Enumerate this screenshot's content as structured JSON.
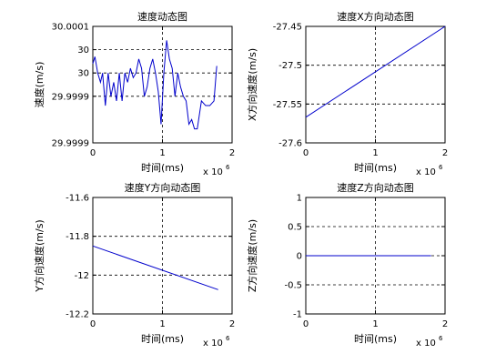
{
  "chart_data": [
    {
      "id": "speed",
      "type": "line",
      "title": "速度动态图",
      "xlabel": "时间(ms)",
      "ylabel": "速度(m/s)",
      "x_multiplier_label": "x 10",
      "x_multiplier_exp": "6",
      "xlim": [
        0,
        2
      ],
      "ylim": [
        29.99985,
        30.0001
      ],
      "xticks": [
        0,
        1,
        2
      ],
      "xtick_labels": [
        "0",
        "1",
        "2"
      ],
      "yticks": [
        30.0001,
        30.00005,
        30.0,
        29.99995,
        29.99985
      ],
      "ytick_labels": [
        "30.0001",
        "30",
        "30",
        "29.9999",
        "29.9999"
      ],
      "grid": true,
      "series": [
        {
          "color": "#0000cc",
          "x": [
            0.0,
            0.03,
            0.07,
            0.11,
            0.14,
            0.18,
            0.22,
            0.26,
            0.3,
            0.34,
            0.38,
            0.42,
            0.46,
            0.5,
            0.54,
            0.58,
            0.62,
            0.66,
            0.7,
            0.74,
            0.78,
            0.82,
            0.86,
            0.9,
            0.94,
            0.98,
            1.02,
            1.06,
            1.1,
            1.14,
            1.18,
            1.22,
            1.26,
            1.3,
            1.34,
            1.38,
            1.42,
            1.46,
            1.5,
            1.56,
            1.62,
            1.68,
            1.74,
            1.78
          ],
          "y": [
            30.00002,
            30.000035,
            30.0,
            29.99998,
            30.0,
            29.99993,
            30.0,
            29.99995,
            29.99998,
            29.99994,
            30.0,
            29.99994,
            30.0,
            29.99998,
            30.00001,
            29.99999,
            30.0,
            30.00003,
            30.00001,
            29.99995,
            29.99997,
            30.00001,
            30.00003,
            30.0,
            29.99996,
            29.99989,
            30.0,
            30.00007,
            30.00003,
            30.00001,
            29.99995,
            30.0,
            29.99997,
            29.99995,
            29.99994,
            29.99989,
            29.9999,
            29.99988,
            29.99988,
            29.99994,
            29.99993,
            29.99993,
            29.99994,
            30.000015
          ]
        }
      ]
    },
    {
      "id": "vx",
      "type": "line",
      "title": "速度X方向动态图",
      "xlabel": "时间(ms)",
      "ylabel": "X方向速度(m/s)",
      "x_multiplier_label": "x 10",
      "x_multiplier_exp": "6",
      "xlim": [
        0,
        2
      ],
      "ylim": [
        -27.6,
        -27.45
      ],
      "xticks": [
        0,
        1,
        2
      ],
      "xtick_labels": [
        "0",
        "1",
        "2"
      ],
      "yticks": [
        -27.45,
        -27.5,
        -27.55,
        -27.6
      ],
      "ytick_labels": [
        "-27.45",
        "-27.5",
        "-27.55",
        "-27.6"
      ],
      "grid": true,
      "series": [
        {
          "color": "#0000cc",
          "x": [
            0.0,
            2.0
          ],
          "y": [
            -27.567,
            -27.45
          ]
        }
      ]
    },
    {
      "id": "vy",
      "type": "line",
      "title": "速度Y方向动态图",
      "xlabel": "时间(ms)",
      "ylabel": "Y方向速度(m/s)",
      "x_multiplier_label": "x 10",
      "x_multiplier_exp": "6",
      "xlim": [
        0,
        2
      ],
      "ylim": [
        -12.2,
        -11.6
      ],
      "xticks": [
        0,
        1,
        2
      ],
      "xtick_labels": [
        "0",
        "1",
        "2"
      ],
      "yticks": [
        -11.6,
        -11.8,
        -12.0,
        -12.2
      ],
      "ytick_labels": [
        "-11.6",
        "-11.8",
        "-12",
        "-12.2"
      ],
      "grid": true,
      "series": [
        {
          "color": "#0000cc",
          "x": [
            0.0,
            1.8
          ],
          "y": [
            -11.85,
            -12.075
          ]
        }
      ]
    },
    {
      "id": "vz",
      "type": "line",
      "title": "速度Z方向动态图",
      "xlabel": "时间(ms)",
      "ylabel": "Z方向速度(m/s)",
      "x_multiplier_label": "x 10",
      "x_multiplier_exp": "6",
      "xlim": [
        0,
        2
      ],
      "ylim": [
        -1,
        1
      ],
      "xticks": [
        0,
        1,
        2
      ],
      "xtick_labels": [
        "0",
        "1",
        "2"
      ],
      "yticks": [
        1,
        0.5,
        0,
        -0.5,
        -1
      ],
      "ytick_labels": [
        "1",
        "0.5",
        "0",
        "-0.5",
        "-1"
      ],
      "grid": true,
      "series": [
        {
          "color": "#0000cc",
          "x": [
            0.0,
            1.8
          ],
          "y": [
            0.0,
            0.0
          ]
        }
      ]
    }
  ]
}
